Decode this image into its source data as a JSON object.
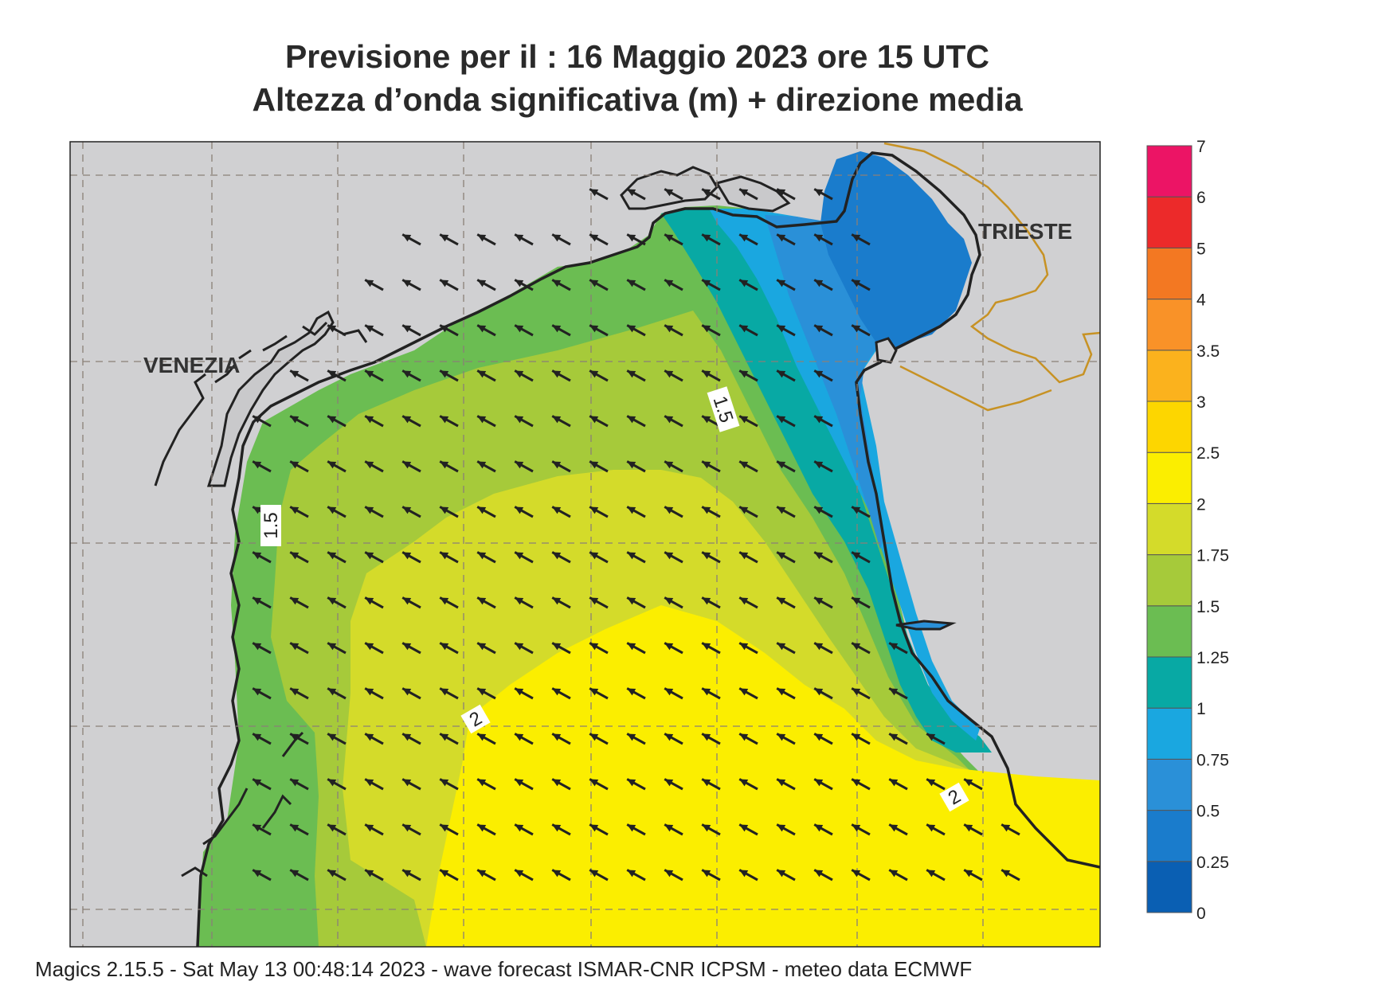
{
  "title": {
    "line1": "Previsione per il  :  16   Maggio  2023   ore 15 UTC",
    "line2": "Altezza d’onda significativa (m) + direzione media"
  },
  "cities": {
    "venezia": "VENEZIA",
    "trieste": "TRIESTE"
  },
  "contour_labels": [
    "1.5",
    "1.5",
    "2",
    "2"
  ],
  "legend": {
    "levels": [
      "0",
      "0.25",
      "0.5",
      "0.75",
      "1",
      "1.25",
      "1.5",
      "1.75",
      "2",
      "2.5",
      "3",
      "3.5",
      "4",
      "5",
      "6",
      "7"
    ],
    "colors": [
      "#0a5fb3",
      "#1a7ccc",
      "#2a90d8",
      "#1aa7e0",
      "#08a9a4",
      "#6bbd52",
      "#a6ca3a",
      "#d4db2a",
      "#fbee00",
      "#fdd600",
      "#fbb21d",
      "#f99228",
      "#f37822",
      "#ec2a2a",
      "#ec1465"
    ]
  },
  "footer": "Magics 2.15.5 - Sat May 13 00:48:14 2023 - wave forecast  ISMAR-CNR  ICPSM - meteo data    ECMWF"
}
